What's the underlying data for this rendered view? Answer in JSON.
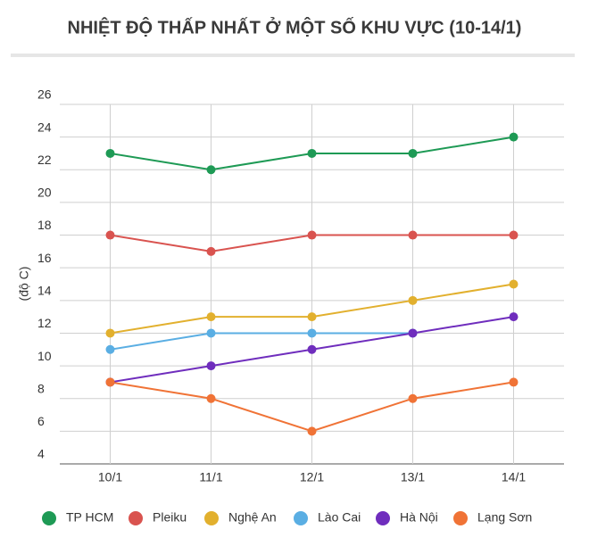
{
  "chart_data": {
    "type": "line",
    "title": "NHIỆT ĐỘ THẤP NHẤT Ở MỘT SỐ KHU VỰC (10-14/1)",
    "y_label": "(độ C)",
    "categories": [
      "10/1",
      "11/1",
      "12/1",
      "13/1",
      "14/1"
    ],
    "ylim": [
      4,
      26
    ],
    "yticks": [
      4,
      6,
      8,
      10,
      12,
      14,
      16,
      18,
      20,
      22,
      24,
      26
    ],
    "grid": true,
    "series": [
      {
        "name": "TP HCM",
        "color": "#1e9a55",
        "values": [
          23,
          22,
          23,
          23,
          24
        ]
      },
      {
        "name": "Pleiku",
        "color": "#d9534f",
        "values": [
          18,
          17,
          18,
          18,
          18
        ]
      },
      {
        "name": "Nghệ An",
        "color": "#e2b02e",
        "values": [
          12,
          13,
          13,
          14,
          15
        ]
      },
      {
        "name": "Lào Cai",
        "color": "#5aaee3",
        "values": [
          11,
          12,
          12,
          12,
          null
        ]
      },
      {
        "name": "Hà Nội",
        "color": "#6f2dbd",
        "values": [
          9,
          10,
          11,
          12,
          13
        ]
      },
      {
        "name": "Lạng Sơn",
        "color": "#f07336",
        "values": [
          9,
          8,
          6,
          8,
          9
        ]
      }
    ]
  }
}
